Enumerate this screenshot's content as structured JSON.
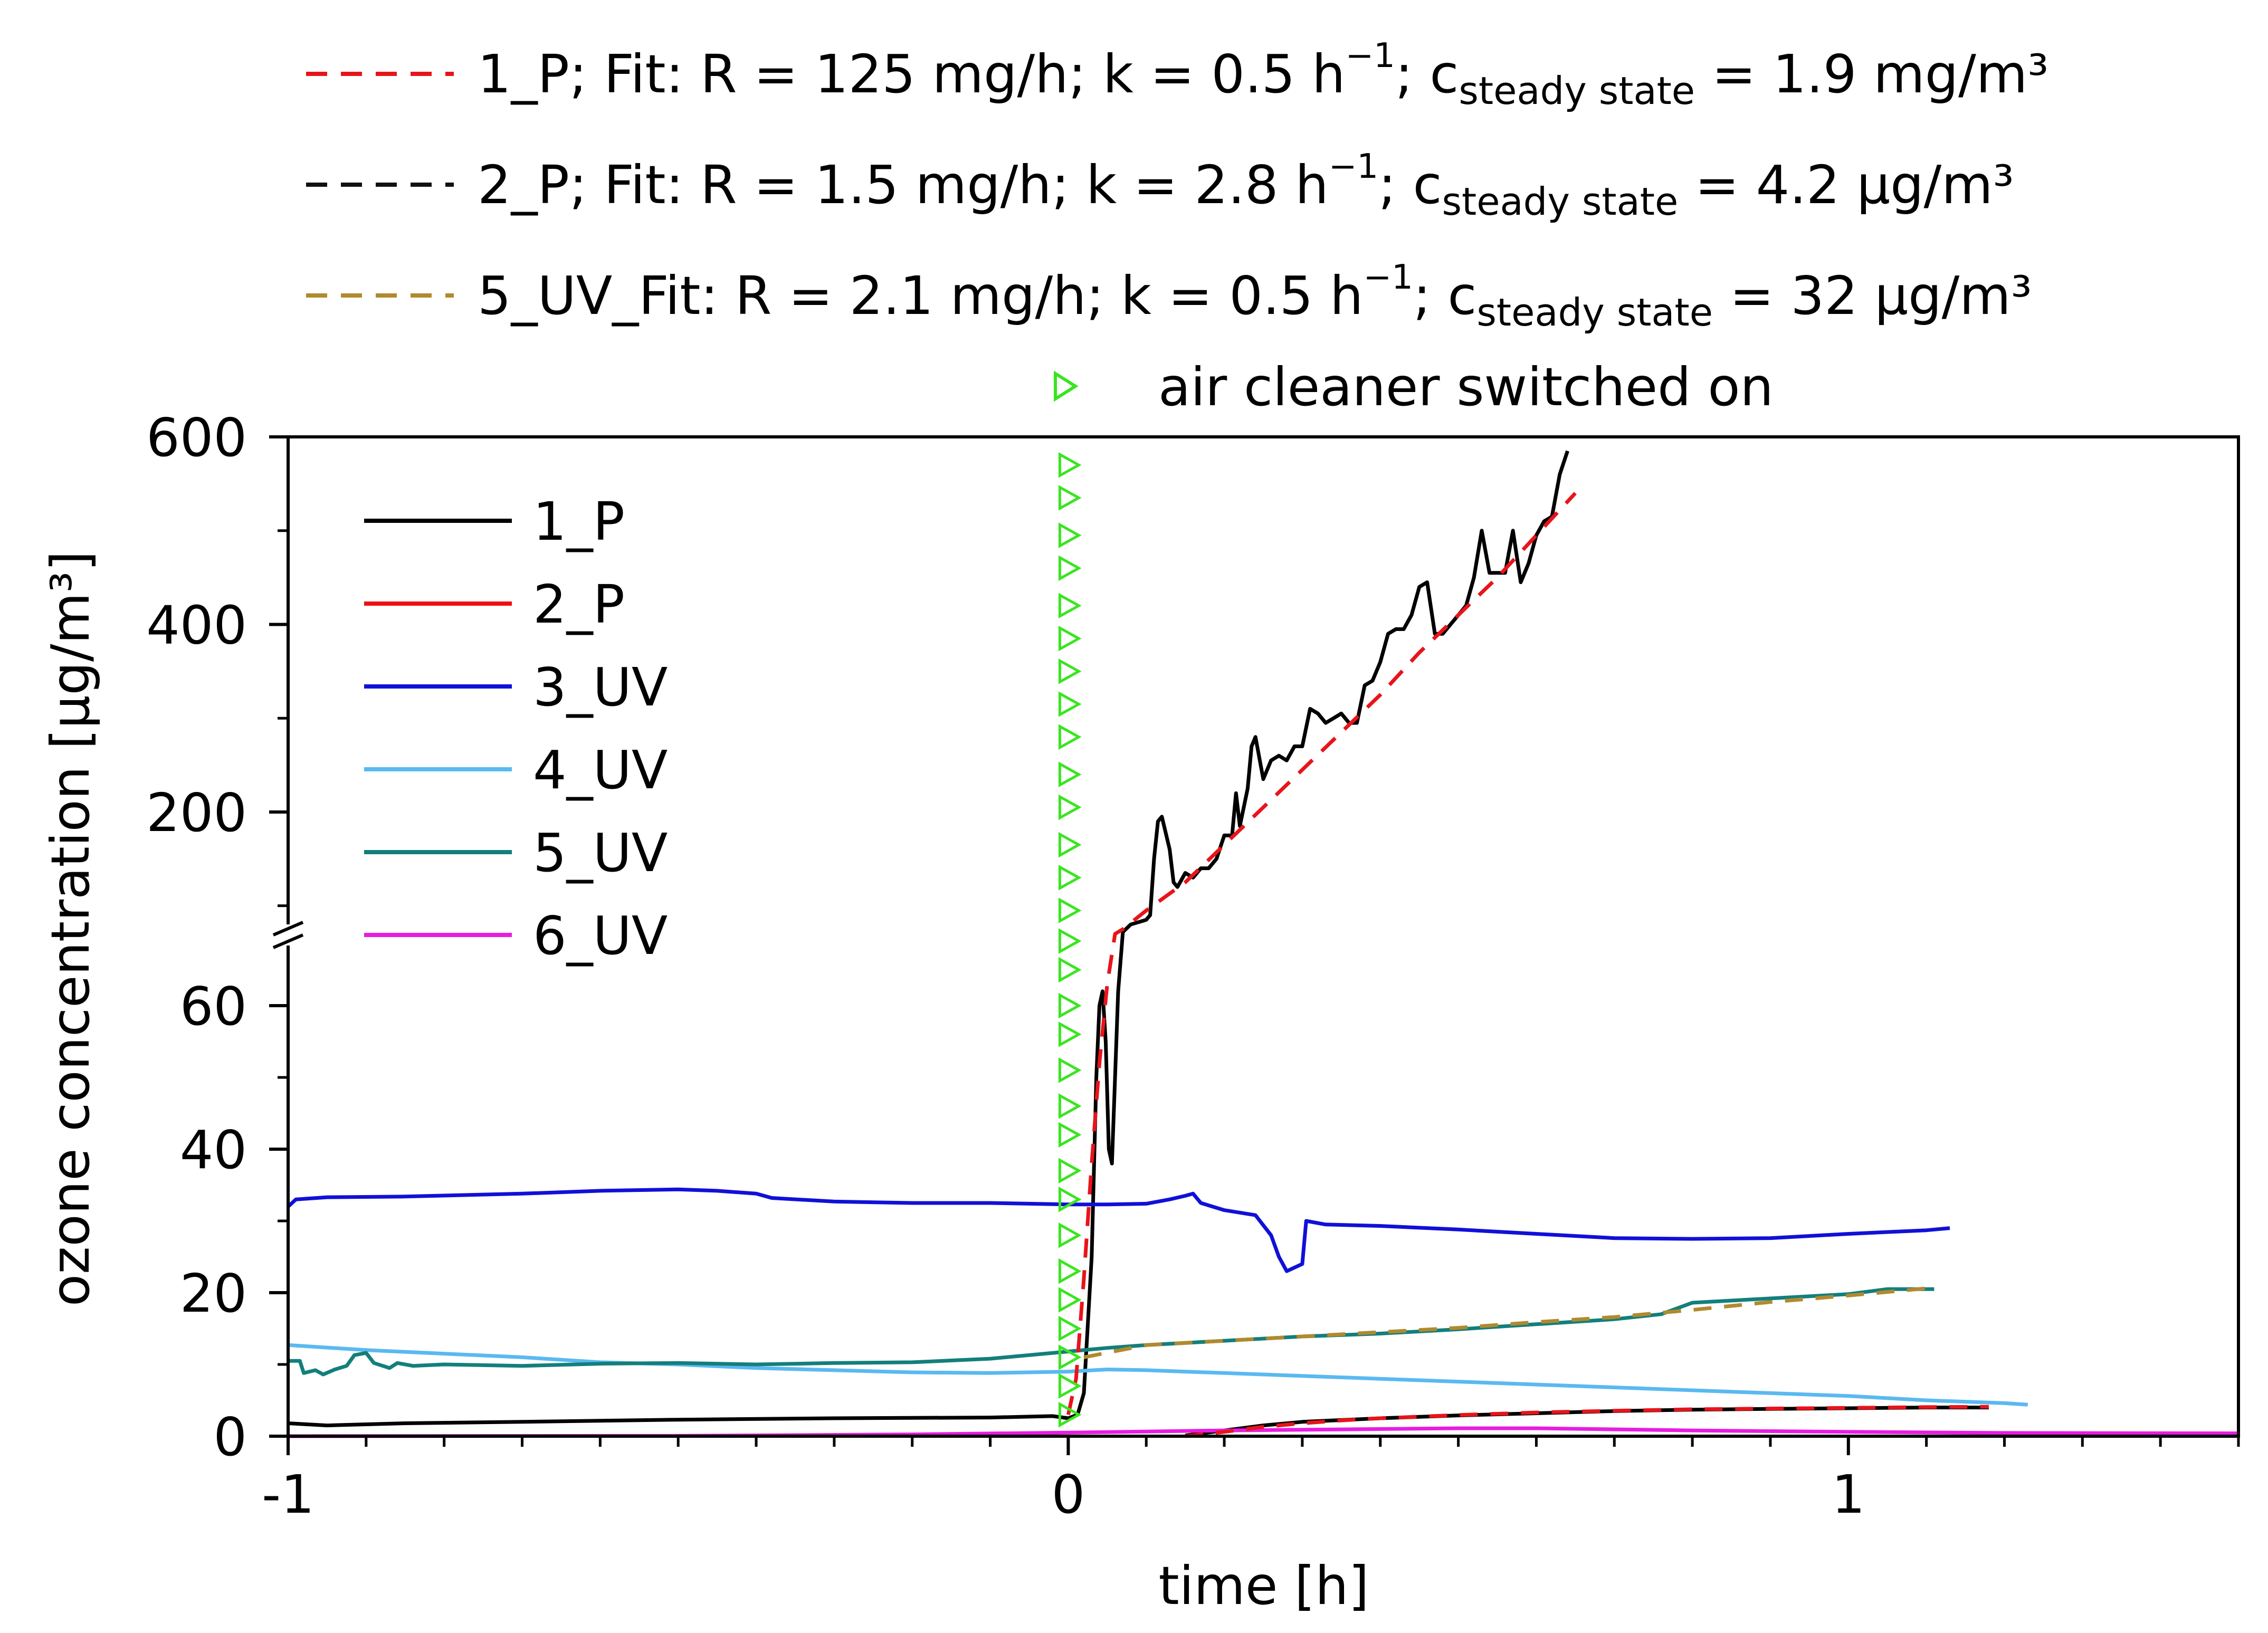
{
  "chart_data": {
    "type": "line",
    "xlabel": "time [h]",
    "ylabel": "ozone concentration [µg/m³]",
    "xlim": [
      -1,
      1.5
    ],
    "ylim_lower": [
      0,
      70
    ],
    "ylim_upper": [
      70,
      600
    ],
    "y_axis_break": 70,
    "x_ticks": [
      {
        "value": -1,
        "label": "-1"
      },
      {
        "value": 0,
        "label": "0"
      },
      {
        "value": 1,
        "label": "1"
      }
    ],
    "y_ticks": [
      {
        "value": 0,
        "label": "0"
      },
      {
        "value": 20,
        "label": "20"
      },
      {
        "value": 40,
        "label": "40"
      },
      {
        "value": 60,
        "label": "60"
      },
      {
        "value": 200,
        "label": "200"
      },
      {
        "value": 400,
        "label": "400"
      },
      {
        "value": 600,
        "label": "600"
      }
    ],
    "top_legend": [
      {
        "name": "1_P; Fit: R = 125 mg/h; k = 0.5 h",
        "k_unit_sup": "−1",
        "c_label": "c",
        "c_sub": "steady state",
        "c_value": " = 1.9 mg/m³",
        "color": "#e8141b",
        "style": "dashed"
      },
      {
        "name": "2_P; Fit: R = 1.5 mg/h; k = 2.8 h",
        "k_unit_sup": "−1",
        "c_label": "c",
        "c_sub": "steady state",
        "c_value": " = 4.2 µg/m³",
        "color": "#111111",
        "style": "dashed"
      },
      {
        "name": "5_UV_Fit: R = 2.1 mg/h; k = 0.5 h",
        "k_unit_sup": "−1",
        "c_label": "c",
        "c_sub": "steady state",
        "c_value": " = 32 µg/m³",
        "color": "#b08a2e",
        "style": "dashed"
      },
      {
        "name": "air cleaner switched on",
        "color": "#39e51f",
        "style": "marker"
      }
    ],
    "inner_legend": [
      {
        "name": "1_P",
        "color": "#000000"
      },
      {
        "name": "2_P",
        "color": "#ee1111"
      },
      {
        "name": "3_UV",
        "color": "#1010d8"
      },
      {
        "name": "4_UV",
        "color": "#5ab9f0"
      },
      {
        "name": "5_UV",
        "color": "#137f7c"
      },
      {
        "name": "6_UV",
        "color": "#e81ce0"
      }
    ],
    "series": [
      {
        "name": "1_P",
        "color": "#000000",
        "width": 7,
        "points": [
          [
            -1,
            1.8
          ],
          [
            -0.95,
            1.5
          ],
          [
            -0.85,
            1.8
          ],
          [
            -0.7,
            2.0
          ],
          [
            -0.5,
            2.3
          ],
          [
            -0.3,
            2.5
          ],
          [
            -0.1,
            2.6
          ],
          [
            -0.02,
            2.8
          ],
          [
            0,
            2.5
          ],
          [
            0.012,
            3
          ],
          [
            0.02,
            6
          ],
          [
            0.03,
            25
          ],
          [
            0.036,
            50
          ],
          [
            0.04,
            60
          ],
          [
            0.044,
            62
          ],
          [
            0.048,
            55
          ],
          [
            0.052,
            40
          ],
          [
            0.056,
            38
          ],
          [
            0.06,
            50
          ],
          [
            0.064,
            62
          ],
          [
            0.07,
            72
          ],
          [
            0.08,
            80
          ],
          [
            0.1,
            85
          ],
          [
            0.105,
            90
          ],
          [
            0.11,
            150
          ],
          [
            0.115,
            190
          ],
          [
            0.12,
            195
          ],
          [
            0.13,
            160
          ],
          [
            0.135,
            125
          ],
          [
            0.14,
            120
          ],
          [
            0.15,
            135
          ],
          [
            0.16,
            130
          ],
          [
            0.17,
            140
          ],
          [
            0.18,
            140
          ],
          [
            0.19,
            150
          ],
          [
            0.2,
            175
          ],
          [
            0.21,
            175
          ],
          [
            0.215,
            220
          ],
          [
            0.22,
            185
          ],
          [
            0.23,
            225
          ],
          [
            0.235,
            270
          ],
          [
            0.24,
            280
          ],
          [
            0.25,
            235
          ],
          [
            0.26,
            255
          ],
          [
            0.27,
            260
          ],
          [
            0.28,
            255
          ],
          [
            0.29,
            270
          ],
          [
            0.3,
            270
          ],
          [
            0.31,
            310
          ],
          [
            0.32,
            305
          ],
          [
            0.33,
            295
          ],
          [
            0.34,
            300
          ],
          [
            0.35,
            305
          ],
          [
            0.36,
            295
          ],
          [
            0.37,
            295
          ],
          [
            0.38,
            335
          ],
          [
            0.39,
            340
          ],
          [
            0.4,
            360
          ],
          [
            0.41,
            390
          ],
          [
            0.42,
            395
          ],
          [
            0.43,
            395
          ],
          [
            0.44,
            410
          ],
          [
            0.45,
            440
          ],
          [
            0.46,
            445
          ],
          [
            0.47,
            390
          ],
          [
            0.48,
            390
          ],
          [
            0.49,
            400
          ],
          [
            0.5,
            410
          ],
          [
            0.51,
            420
          ],
          [
            0.52,
            450
          ],
          [
            0.53,
            500
          ],
          [
            0.54,
            455
          ],
          [
            0.55,
            455
          ],
          [
            0.56,
            455
          ],
          [
            0.57,
            500
          ],
          [
            0.58,
            445
          ],
          [
            0.59,
            465
          ],
          [
            0.6,
            495
          ],
          [
            0.61,
            510
          ],
          [
            0.62,
            515
          ],
          [
            0.63,
            560
          ],
          [
            0.64,
            585
          ]
        ]
      },
      {
        "name": "2_P",
        "color": "#000000",
        "width": 7,
        "points": [
          [
            0.15,
            0.1
          ],
          [
            0.2,
            0.8
          ],
          [
            0.25,
            1.5
          ],
          [
            0.3,
            2.0
          ],
          [
            0.4,
            2.5
          ],
          [
            0.5,
            2.9
          ],
          [
            0.6,
            3.2
          ],
          [
            0.7,
            3.5
          ],
          [
            0.8,
            3.7
          ],
          [
            0.9,
            3.8
          ],
          [
            1.0,
            3.9
          ],
          [
            1.1,
            4.0
          ],
          [
            1.18,
            4.0
          ]
        ]
      },
      {
        "name": "3_UV",
        "color": "#1010d8",
        "width": 7,
        "points": [
          [
            -1,
            32
          ],
          [
            -0.99,
            33
          ],
          [
            -0.95,
            33.3
          ],
          [
            -0.85,
            33.4
          ],
          [
            -0.7,
            33.8
          ],
          [
            -0.6,
            34.2
          ],
          [
            -0.5,
            34.4
          ],
          [
            -0.45,
            34.2
          ],
          [
            -0.4,
            33.8
          ],
          [
            -0.38,
            33.2
          ],
          [
            -0.3,
            32.7
          ],
          [
            -0.2,
            32.5
          ],
          [
            -0.1,
            32.5
          ],
          [
            0,
            32.3
          ],
          [
            0.05,
            32.3
          ],
          [
            0.1,
            32.4
          ],
          [
            0.13,
            33
          ],
          [
            0.15,
            33.5
          ],
          [
            0.16,
            33.8
          ],
          [
            0.17,
            32.5
          ],
          [
            0.2,
            31.5
          ],
          [
            0.24,
            30.8
          ],
          [
            0.26,
            28
          ],
          [
            0.27,
            25
          ],
          [
            0.28,
            23
          ],
          [
            0.3,
            24
          ],
          [
            0.305,
            30
          ],
          [
            0.33,
            29.5
          ],
          [
            0.4,
            29.3
          ],
          [
            0.5,
            28.8
          ],
          [
            0.6,
            28.2
          ],
          [
            0.7,
            27.6
          ],
          [
            0.8,
            27.5
          ],
          [
            0.9,
            27.6
          ],
          [
            1.0,
            28.2
          ],
          [
            1.1,
            28.7
          ],
          [
            1.13,
            29
          ]
        ]
      },
      {
        "name": "4_UV",
        "color": "#5ab9f0",
        "width": 7,
        "points": [
          [
            -1,
            12.7
          ],
          [
            -0.9,
            12
          ],
          [
            -0.8,
            11.5
          ],
          [
            -0.7,
            11
          ],
          [
            -0.6,
            10.3
          ],
          [
            -0.5,
            10
          ],
          [
            -0.4,
            9.5
          ],
          [
            -0.3,
            9.2
          ],
          [
            -0.2,
            8.9
          ],
          [
            -0.1,
            8.8
          ],
          [
            0,
            9
          ],
          [
            0.05,
            9.3
          ],
          [
            0.1,
            9.2
          ],
          [
            0.2,
            8.8
          ],
          [
            0.3,
            8.4
          ],
          [
            0.4,
            8
          ],
          [
            0.5,
            7.6
          ],
          [
            0.6,
            7.2
          ],
          [
            0.7,
            6.8
          ],
          [
            0.8,
            6.4
          ],
          [
            0.9,
            6
          ],
          [
            1.0,
            5.6
          ],
          [
            1.1,
            5
          ],
          [
            1.2,
            4.6
          ],
          [
            1.23,
            4.4
          ]
        ]
      },
      {
        "name": "5_UV",
        "color": "#137f7c",
        "width": 7,
        "points": [
          [
            -1,
            10.5
          ],
          [
            -0.985,
            10.5
          ],
          [
            -0.98,
            8.8
          ],
          [
            -0.965,
            9.2
          ],
          [
            -0.955,
            8.6
          ],
          [
            -0.94,
            9.3
          ],
          [
            -0.925,
            9.8
          ],
          [
            -0.915,
            11.3
          ],
          [
            -0.9,
            11.6
          ],
          [
            -0.89,
            10.2
          ],
          [
            -0.87,
            9.5
          ],
          [
            -0.86,
            10.2
          ],
          [
            -0.84,
            9.8
          ],
          [
            -0.8,
            10
          ],
          [
            -0.7,
            9.8
          ],
          [
            -0.6,
            10.1
          ],
          [
            -0.5,
            10.2
          ],
          [
            -0.4,
            10
          ],
          [
            -0.3,
            10.2
          ],
          [
            -0.2,
            10.3
          ],
          [
            -0.1,
            10.8
          ],
          [
            0,
            11.8
          ],
          [
            0.05,
            12.3
          ],
          [
            0.1,
            12.7
          ],
          [
            0.2,
            13.3
          ],
          [
            0.3,
            13.9
          ],
          [
            0.4,
            14.3
          ],
          [
            0.5,
            14.9
          ],
          [
            0.6,
            15.6
          ],
          [
            0.7,
            16.3
          ],
          [
            0.76,
            17
          ],
          [
            0.8,
            18.6
          ],
          [
            0.9,
            19.2
          ],
          [
            1.0,
            19.8
          ],
          [
            1.05,
            20.5
          ],
          [
            1.11,
            20.5
          ]
        ]
      },
      {
        "name": "6_UV",
        "color": "#e81ce0",
        "width": 7,
        "points": [
          [
            -1,
            0
          ],
          [
            -0.5,
            0.05
          ],
          [
            -0.2,
            0.25
          ],
          [
            0,
            0.5
          ],
          [
            0.2,
            0.8
          ],
          [
            0.4,
            1.0
          ],
          [
            0.5,
            1.1
          ],
          [
            0.6,
            1.1
          ],
          [
            0.8,
            0.8
          ],
          [
            1.0,
            0.6
          ],
          [
            1.2,
            0.45
          ],
          [
            1.5,
            0.4
          ]
        ]
      }
    ],
    "fits": [
      {
        "name": "1_P fit",
        "color": "#e8141b",
        "dash": [
          36,
          24
        ],
        "width": 7,
        "points": [
          [
            0,
            3
          ],
          [
            0.01,
            8
          ],
          [
            0.02,
            22
          ],
          [
            0.03,
            38
          ],
          [
            0.04,
            52
          ],
          [
            0.05,
            63
          ],
          [
            0.06,
            70
          ],
          [
            0.07,
            75
          ],
          [
            0.1,
            95
          ],
          [
            0.15,
            125
          ],
          [
            0.2,
            165
          ],
          [
            0.25,
            205
          ],
          [
            0.3,
            245
          ],
          [
            0.35,
            285
          ],
          [
            0.4,
            325
          ],
          [
            0.45,
            370
          ],
          [
            0.5,
            410
          ],
          [
            0.55,
            450
          ],
          [
            0.6,
            495
          ],
          [
            0.65,
            540
          ]
        ]
      },
      {
        "name": "2_P fit",
        "color": "#e8141b",
        "dash": [
          34,
          24
        ],
        "width": 7,
        "points": [
          [
            0.15,
            0
          ],
          [
            0.2,
            0.6
          ],
          [
            0.25,
            1.3
          ],
          [
            0.3,
            1.8
          ],
          [
            0.35,
            2.2
          ],
          [
            0.4,
            2.5
          ],
          [
            0.5,
            2.95
          ],
          [
            0.6,
            3.3
          ],
          [
            0.7,
            3.55
          ],
          [
            0.8,
            3.75
          ],
          [
            0.9,
            3.85
          ],
          [
            1.0,
            3.95
          ],
          [
            1.1,
            4.05
          ],
          [
            1.18,
            4.1
          ]
        ]
      },
      {
        "name": "5_UV fit",
        "color": "#b08a2e",
        "dash": [
          34,
          24
        ],
        "width": 7,
        "points": [
          [
            0.02,
            11
          ],
          [
            0.1,
            12.7
          ],
          [
            0.2,
            13.3
          ],
          [
            0.3,
            13.9
          ],
          [
            0.4,
            14.5
          ],
          [
            0.5,
            15.1
          ],
          [
            0.6,
            15.9
          ],
          [
            0.7,
            16.6
          ],
          [
            0.8,
            17.6
          ],
          [
            0.9,
            18.7
          ],
          [
            1.0,
            19.6
          ],
          [
            1.1,
            20.6
          ]
        ]
      }
    ],
    "switch_on_marker": {
      "x": 0,
      "lower_values": [
        3,
        7,
        11,
        15,
        19,
        23,
        28,
        33,
        37,
        42,
        46,
        51,
        56,
        60,
        65,
        69
      ],
      "upper_values": [
        95,
        130,
        165,
        205,
        240,
        280,
        315,
        350,
        385,
        420,
        460,
        495,
        535,
        570
      ]
    }
  }
}
